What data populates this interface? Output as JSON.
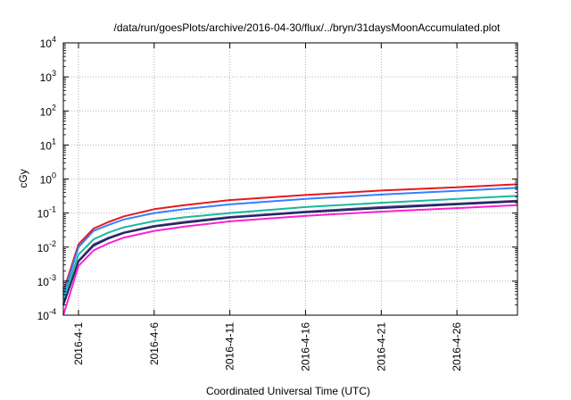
{
  "chart_data": {
    "type": "line",
    "title": "/data/run/goesPlots/archive/2016-04-30/flux/../bryn/31daysMoonAccumulated.plot",
    "xlabel": "Coordinated Universal Time (UTC)",
    "ylabel": "cGy",
    "yscale": "log",
    "ylim_exponents": [
      -4,
      4
    ],
    "y_ticks": [
      {
        "base": "10",
        "exp": "-4"
      },
      {
        "base": "10",
        "exp": "-3"
      },
      {
        "base": "10",
        "exp": "-2"
      },
      {
        "base": "10",
        "exp": "-1"
      },
      {
        "base": "10",
        "exp": "0"
      },
      {
        "base": "10",
        "exp": "1"
      },
      {
        "base": "10",
        "exp": "2"
      },
      {
        "base": "10",
        "exp": "3"
      },
      {
        "base": "10",
        "exp": "4"
      }
    ],
    "x_start": "2016-03-31",
    "x_end": "2016-04-30",
    "x_ticks": [
      {
        "date": "2016-04-01",
        "label": "2016-4-1"
      },
      {
        "date": "2016-04-06",
        "label": "2016-4-6"
      },
      {
        "date": "2016-04-11",
        "label": "2016-4-11"
      },
      {
        "date": "2016-04-16",
        "label": "2016-4-16"
      },
      {
        "date": "2016-04-21",
        "label": "2016-4-21"
      },
      {
        "date": "2016-04-26",
        "label": "2016-4-26"
      }
    ],
    "grid": true,
    "legend": "none",
    "x_dates": [
      "2016-03-31",
      "2016-04-01",
      "2016-04-02",
      "2016-04-03",
      "2016-04-04",
      "2016-04-06",
      "2016-04-08",
      "2016-04-11",
      "2016-04-16",
      "2016-04-21",
      "2016-04-26",
      "2016-04-30"
    ],
    "series": [
      {
        "color": "#e41a1c",
        "values": [
          0.0005,
          0.012,
          0.035,
          0.055,
          0.08,
          0.13,
          0.17,
          0.24,
          0.34,
          0.46,
          0.57,
          0.7
        ]
      },
      {
        "color": "#377eff",
        "values": [
          0.0004,
          0.01,
          0.03,
          0.045,
          0.065,
          0.1,
          0.13,
          0.18,
          0.26,
          0.35,
          0.45,
          0.55
        ]
      },
      {
        "color": "#1bb89a",
        "values": [
          0.0003,
          0.006,
          0.017,
          0.027,
          0.038,
          0.058,
          0.075,
          0.1,
          0.15,
          0.2,
          0.26,
          0.32
        ]
      },
      {
        "color": "#5a3a8c",
        "values": [
          0.0002,
          0.004,
          0.012,
          0.019,
          0.027,
          0.042,
          0.055,
          0.077,
          0.11,
          0.15,
          0.19,
          0.23
        ]
      },
      {
        "color": "#1a2a5a",
        "values": [
          0.0002,
          0.0038,
          0.011,
          0.018,
          0.026,
          0.04,
          0.052,
          0.073,
          0.105,
          0.14,
          0.18,
          0.22
        ]
      },
      {
        "color": "#ff1fd0",
        "values": [
          0.0001,
          0.0028,
          0.008,
          0.013,
          0.019,
          0.03,
          0.04,
          0.057,
          0.083,
          0.11,
          0.14,
          0.17
        ]
      }
    ]
  }
}
